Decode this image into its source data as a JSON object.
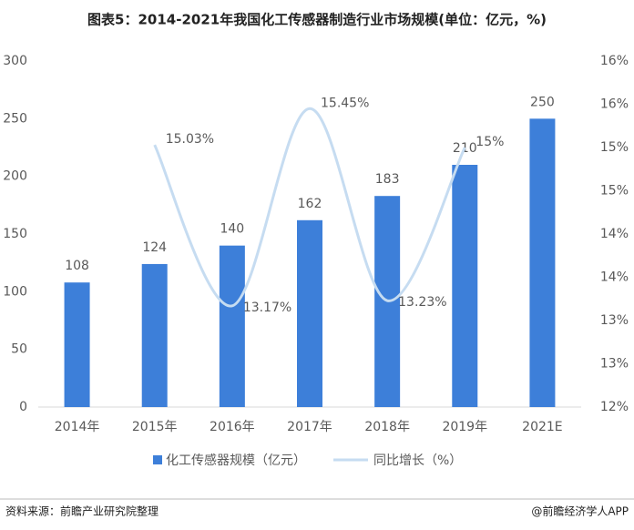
{
  "chart_data": {
    "type": "bar-line",
    "title": "图表5：2014-2021年我国化工传感器制造行业市场规模(单位：亿元，%)",
    "categories": [
      "2014年",
      "2015年",
      "2016年",
      "2017年",
      "2018年",
      "2019年",
      "2021E"
    ],
    "series": [
      {
        "name": "化工传感器规模（亿元）",
        "type": "bar",
        "color": "#3d7fd9",
        "values": [
          108,
          124,
          140,
          162,
          183,
          210,
          250
        ]
      },
      {
        "name": "同比增长（%）",
        "type": "line",
        "axis": "y2",
        "color": "#c6dcf1",
        "smooth": true,
        "values": [
          null,
          15.03,
          13.17,
          15.45,
          13.23,
          15,
          null
        ],
        "value_labels": [
          null,
          "15.03%",
          "13.17%",
          "15.45%",
          "13.23%",
          "15%",
          null
        ]
      }
    ],
    "ylim": [
      0,
      300
    ],
    "yticks": [
      0,
      50,
      100,
      150,
      200,
      250,
      300
    ],
    "y2lim": [
      12,
      16
    ],
    "y2ticks": [
      {
        "value": 12,
        "label": "12%"
      },
      {
        "value": 12.5,
        "label": "13%"
      },
      {
        "value": 13,
        "label": "13%"
      },
      {
        "value": 13.5,
        "label": "14%"
      },
      {
        "value": 14,
        "label": "14%"
      },
      {
        "value": 14.5,
        "label": "15%"
      },
      {
        "value": 15,
        "label": "15%"
      },
      {
        "value": 15.5,
        "label": "16%"
      },
      {
        "value": 16,
        "label": "16%"
      }
    ],
    "legend": "bottom",
    "source": "资料来源：前瞻产业研究院整理",
    "credit": "@前瞻经济学人APP"
  }
}
